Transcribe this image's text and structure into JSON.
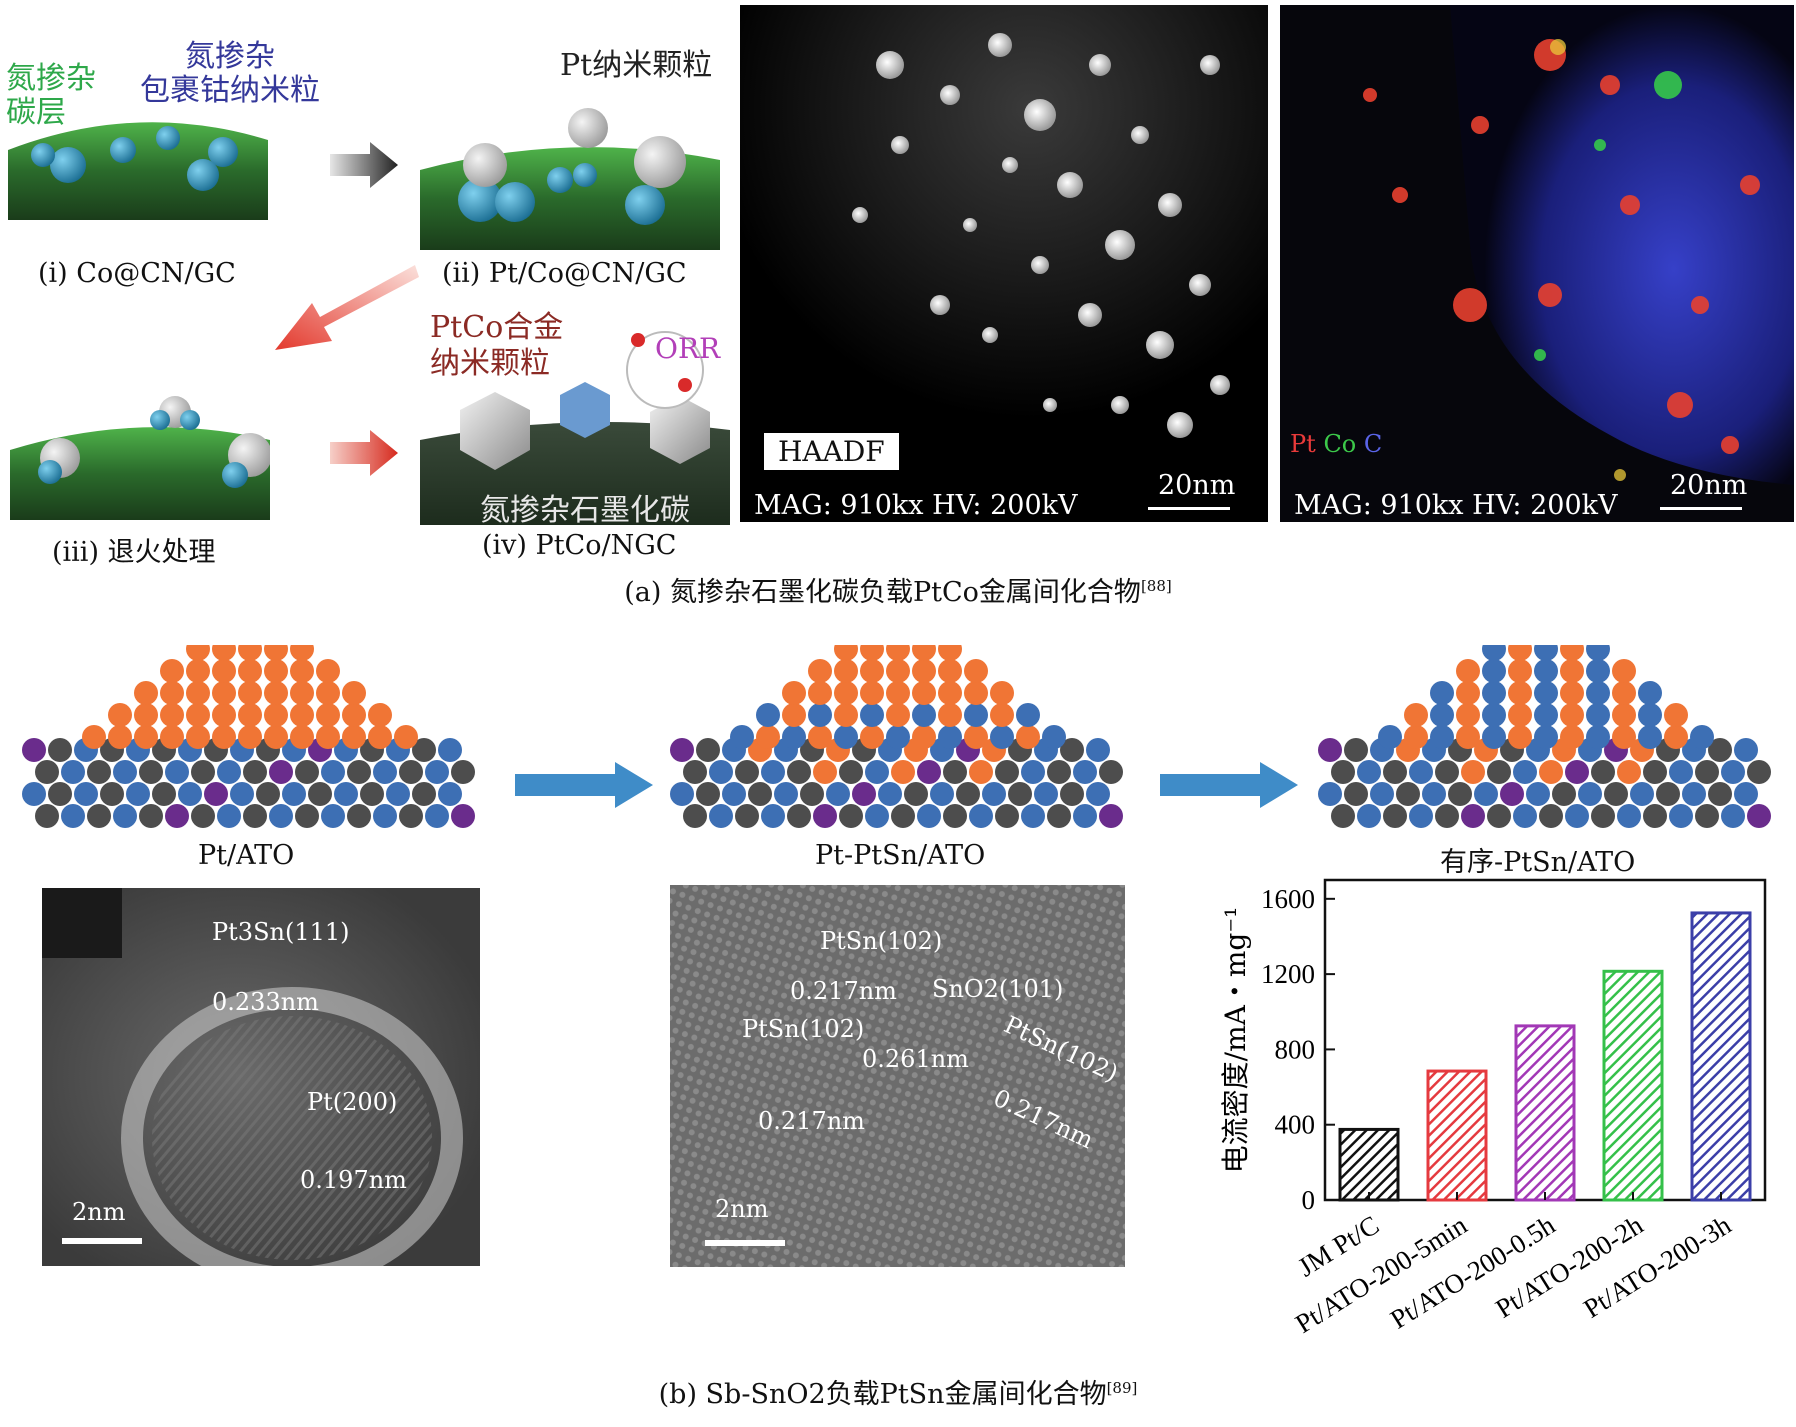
{
  "panel_a": {
    "label_green": "氮掺杂\n碳层",
    "label_blue": "氮掺杂\n包裹钴纳米粒",
    "label_pt": "Pt纳米颗粒",
    "label_ptco": "PtCo合金\n纳米颗粒",
    "label_orr": "ORR",
    "label_ngc": "氮掺杂石墨化碳",
    "steps": [
      "(ⅰ) Co@CN/GC",
      "(ⅱ) Pt/Co@CN/GC",
      "(ⅲ) 退火处理",
      "(ⅳ) PtCo/NGC"
    ],
    "haadf": {
      "tag": "HAADF",
      "mag": "MAG: 910kx HV: 200kV",
      "scale": "20nm"
    },
    "eds": {
      "legend": [
        "Pt",
        "Co",
        "C"
      ],
      "mag": "MAG: 910kx HV: 200kV",
      "scale": "20nm"
    },
    "caption": "(a) 氮掺杂石墨化碳负载PtCo金属间化合物",
    "caption_ref": "[88]"
  },
  "panel_b": {
    "structures": [
      "Pt/ATO",
      "Pt-PtSn/ATO",
      "有序-PtSn/ATO"
    ],
    "tem1": {
      "ann1": "Pt3Sn(111)",
      "d1": "0.233nm",
      "ann2": "Pt(200)",
      "d2": "0.197nm",
      "scale": "2nm"
    },
    "tem2": {
      "a1": "PtSn(102)",
      "d1": "0.217nm",
      "a2": "SnO2(101)",
      "a3": "PtSn(102)",
      "d3": "0.261nm",
      "d4": "0.217nm",
      "a5": "PtSn(102)",
      "d5": "0.217nm",
      "scale": "2nm"
    },
    "caption": "(b) Sb-SnO2负载PtSn金属间化合物",
    "caption_ref": "[89]"
  },
  "colors": {
    "orange": "#f07535",
    "blue": "#3d6fb4",
    "gray": "#4d4d4d",
    "purple": "#6a2c8c",
    "arrow": "#3f8cc8"
  },
  "chart_data": {
    "type": "bar",
    "categories": [
      "JM Pt/C",
      "Pt/ATO-200-5min",
      "Pt/ATO-200-0.5h",
      "Pt/ATO-200-2h",
      "Pt/ATO-200-3h"
    ],
    "values": [
      375,
      685,
      925,
      1215,
      1525
    ],
    "colors": [
      "#111111",
      "#e53a3f",
      "#a238b6",
      "#35c04a",
      "#3b3fa8"
    ],
    "ylabel": "电流密度/mA・mg⁻¹",
    "ylim": [
      0,
      1700
    ],
    "yticks": [
      0,
      400,
      800,
      1200,
      1600
    ],
    "hatch": "diagonal"
  }
}
